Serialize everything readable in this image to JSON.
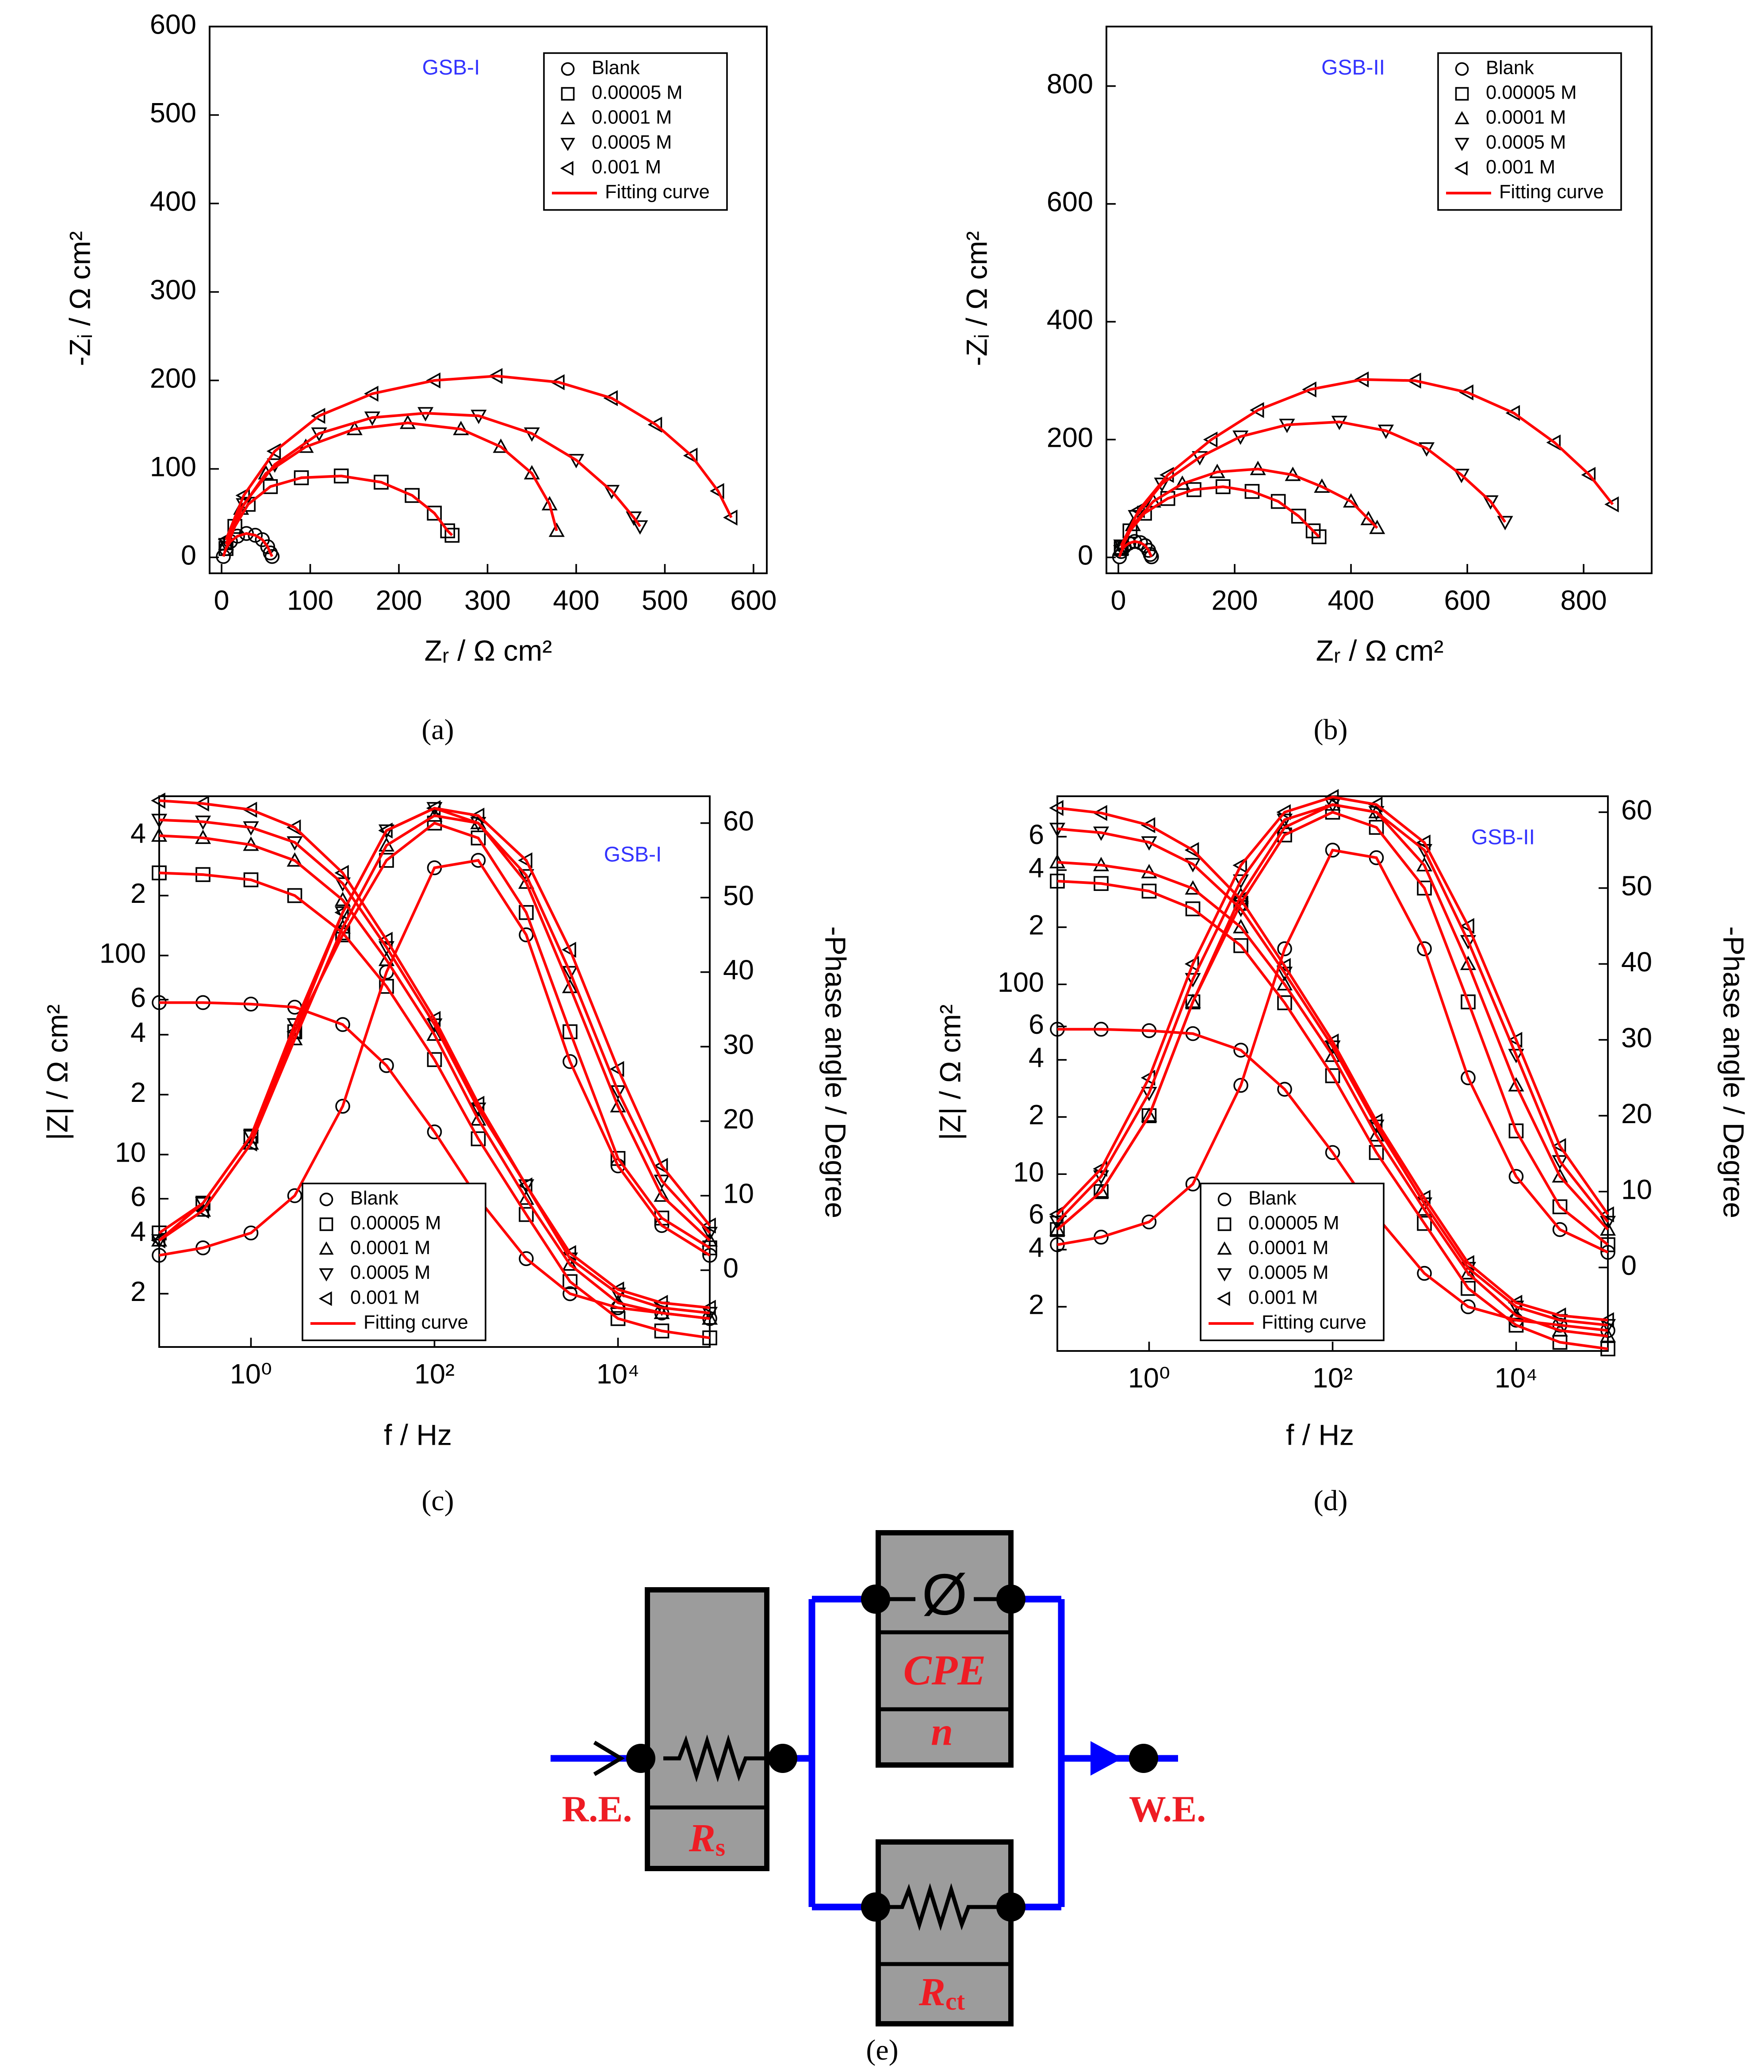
{
  "chart_data": [
    {
      "type": "scatter",
      "panel_label": "(a)",
      "annotation": "GSB-I",
      "annotation_color": "#3333ff",
      "xlabel": "Zᵣ / Ω cm²",
      "ylabel": "-Zᵢ / Ω cm²",
      "xlim": [
        -13.5,
        615
      ],
      "ylim": [
        -18,
        600
      ],
      "xticks": [
        0,
        100,
        200,
        300,
        400,
        500,
        600
      ],
      "yticks": [
        0,
        100,
        200,
        300,
        400,
        500,
        600
      ],
      "legend": "upper right",
      "marker_color": "#000000",
      "fit": {
        "name": "Fitting curve",
        "color": "#ff0000"
      },
      "series": [
        {
          "name": "Blank",
          "marker": "circle",
          "x": [
            2,
            5,
            10,
            18,
            28,
            38,
            46,
            52,
            55,
            57
          ],
          "values": [
            1,
            10,
            18,
            24,
            27,
            25,
            20,
            12,
            5,
            1
          ]
        },
        {
          "name": "0.00005 M",
          "marker": "square",
          "x": [
            5,
            15,
            30,
            55,
            90,
            135,
            180,
            215,
            240,
            255,
            260
          ],
          "values": [
            10,
            35,
            60,
            80,
            90,
            92,
            85,
            70,
            50,
            30,
            25
          ]
        },
        {
          "name": "0.0001 M",
          "marker": "triangle-up",
          "x": [
            5,
            22,
            50,
            95,
            150,
            210,
            270,
            315,
            350,
            370,
            378
          ],
          "values": [
            15,
            55,
            95,
            125,
            145,
            152,
            145,
            125,
            95,
            60,
            30
          ]
        },
        {
          "name": "0.0005 M",
          "marker": "triangle-down",
          "x": [
            5,
            25,
            60,
            110,
            170,
            230,
            290,
            350,
            400,
            440,
            465,
            472
          ],
          "values": [
            15,
            60,
            105,
            140,
            158,
            163,
            160,
            140,
            110,
            75,
            45,
            35
          ]
        },
        {
          "name": "0.001 M",
          "marker": "triangle-left",
          "x": [
            5,
            25,
            60,
            110,
            170,
            240,
            310,
            380,
            440,
            490,
            530,
            560,
            575
          ],
          "values": [
            20,
            70,
            120,
            160,
            185,
            200,
            205,
            198,
            180,
            150,
            115,
            75,
            45
          ]
        }
      ]
    },
    {
      "type": "scatter",
      "panel_label": "(b)",
      "annotation": "GSB-II",
      "annotation_color": "#3333ff",
      "xlabel": "Zᵣ / Ω cm²",
      "ylabel": "-Zᵢ / Ω cm²",
      "xlim": [
        -20.5,
        917
      ],
      "ylim": [
        -27,
        901
      ],
      "xticks": [
        0,
        200,
        400,
        600,
        800
      ],
      "yticks": [
        0,
        200,
        400,
        600,
        800
      ],
      "legend": "upper right",
      "marker_color": "#000000",
      "fit": {
        "name": "Fitting curve",
        "color": "#ff0000"
      },
      "series": [
        {
          "name": "Blank",
          "marker": "circle",
          "x": [
            2,
            5,
            10,
            18,
            28,
            38,
            46,
            52,
            55,
            57
          ],
          "values": [
            1,
            10,
            18,
            24,
            27,
            25,
            20,
            12,
            5,
            1
          ]
        },
        {
          "name": "0.00005 M",
          "marker": "square",
          "x": [
            5,
            20,
            45,
            85,
            130,
            180,
            230,
            275,
            310,
            335,
            345
          ],
          "values": [
            15,
            45,
            75,
            100,
            115,
            120,
            112,
            95,
            70,
            45,
            35
          ]
        },
        {
          "name": "0.0001 M",
          "marker": "triangle-up",
          "x": [
            5,
            25,
            60,
            110,
            170,
            240,
            300,
            350,
            400,
            430,
            445
          ],
          "values": [
            15,
            55,
            95,
            125,
            145,
            150,
            140,
            120,
            95,
            65,
            50
          ]
        },
        {
          "name": "0.0005 M",
          "marker": "triangle-down",
          "x": [
            5,
            30,
            75,
            140,
            210,
            290,
            380,
            460,
            530,
            590,
            640,
            665
          ],
          "values": [
            20,
            70,
            125,
            170,
            205,
            225,
            230,
            215,
            185,
            140,
            95,
            60
          ]
        },
        {
          "name": "0.001 M",
          "marker": "triangle-left",
          "x": [
            5,
            35,
            85,
            160,
            240,
            330,
            420,
            510,
            600,
            680,
            750,
            810,
            850
          ],
          "values": [
            20,
            80,
            140,
            200,
            250,
            285,
            302,
            300,
            280,
            245,
            195,
            140,
            90
          ]
        }
      ]
    },
    {
      "type": "scatter",
      "panel_label": "(c)",
      "annotation": "GSB-I",
      "annotation_color": "#3333ff",
      "xlabel": "f / Hz",
      "ylabel": "|Z| / Ω cm²",
      "y2label": "-Phase angle / Degree",
      "xscale": "log",
      "yscale": "log",
      "xlim": [
        0.1,
        100000
      ],
      "ylim": [
        1.08,
        631
      ],
      "y2lim": [
        -10.3,
        63.6
      ],
      "xticks": [
        {
          "value": 1,
          "label": "10⁰"
        },
        {
          "value": 100,
          "label": "10²"
        },
        {
          "value": 10000,
          "label": "10⁴"
        }
      ],
      "yticks": [
        2,
        4,
        6,
        10,
        {
          "value": 20,
          "label": "2"
        },
        {
          "value": 40,
          "label": "4"
        },
        {
          "value": 60,
          "label": "6"
        },
        100,
        {
          "value": 200,
          "label": "2"
        },
        {
          "value": 400,
          "label": "4"
        }
      ],
      "y2ticks": [
        0,
        10,
        20,
        30,
        40,
        50,
        60
      ],
      "legend": "lower left",
      "marker_color": "#000000",
      "fit": {
        "name": "Fitting curve",
        "color": "#ff0000"
      },
      "x": [
        0.1,
        0.3,
        1,
        3,
        10,
        30,
        100,
        300,
        1000,
        3000,
        10000,
        30000,
        100000
      ],
      "series": [
        {
          "name": "Blank",
          "marker": "circle",
          "values": [
            58,
            58,
            57,
            55,
            45,
            28,
            13,
            6,
            3,
            2,
            1.7,
            1.6,
            1.5
          ],
          "phase": [
            2,
            3,
            5,
            10,
            22,
            40,
            54,
            55,
            45,
            28,
            14,
            6,
            2
          ]
        },
        {
          "name": "0.00005 M",
          "marker": "square",
          "values": [
            260,
            255,
            240,
            200,
            130,
            70,
            30,
            12,
            5,
            2.3,
            1.5,
            1.3,
            1.2
          ],
          "phase": [
            5,
            9,
            18,
            32,
            45,
            55,
            60,
            58,
            48,
            32,
            15,
            7,
            3
          ]
        },
        {
          "name": "0.0001 M",
          "marker": "triangle-up",
          "values": [
            400,
            390,
            360,
            300,
            190,
            95,
            40,
            15,
            6,
            2.8,
            1.8,
            1.6,
            1.5
          ],
          "phase": [
            4,
            8,
            17,
            31,
            46,
            57,
            61,
            60,
            52,
            38,
            22,
            10,
            4
          ]
        },
        {
          "name": "0.0005 M",
          "marker": "triangle-down",
          "values": [
            480,
            470,
            440,
            370,
            230,
            110,
            45,
            17,
            7,
            3,
            2,
            1.7,
            1.6
          ],
          "phase": [
            4,
            9,
            18,
            33,
            48,
            59,
            62,
            60,
            53,
            40,
            24,
            12,
            5
          ]
        },
        {
          "name": "0.001 M",
          "marker": "triangle-left",
          "values": [
            600,
            580,
            540,
            440,
            260,
            120,
            48,
            18,
            7,
            3.2,
            2.1,
            1.8,
            1.7
          ],
          "phase": [
            4,
            8,
            17,
            32,
            48,
            59,
            62,
            61,
            55,
            43,
            27,
            14,
            6
          ]
        }
      ]
    },
    {
      "type": "scatter",
      "panel_label": "(d)",
      "annotation": "GSB-II",
      "annotation_color": "#3333ff",
      "xlabel": "f / Hz",
      "ylabel": "|Z| / Ω cm²",
      "y2label": "-Phase angle / Degree",
      "xscale": "log",
      "yscale": "log",
      "xlim": [
        0.1,
        100000
      ],
      "ylim": [
        1.17,
        980
      ],
      "y2lim": [
        -11,
        62.1
      ],
      "xticks": [
        {
          "value": 1,
          "label": "10⁰"
        },
        {
          "value": 100,
          "label": "10²"
        },
        {
          "value": 10000,
          "label": "10⁴"
        }
      ],
      "yticks": [
        2,
        4,
        6,
        10,
        {
          "value": 20,
          "label": "2"
        },
        {
          "value": 40,
          "label": "4"
        },
        {
          "value": 60,
          "label": "6"
        },
        100,
        {
          "value": 200,
          "label": "2"
        },
        {
          "value": 400,
          "label": "4"
        },
        {
          "value": 600,
          "label": "6"
        }
      ],
      "y2ticks": [
        0,
        10,
        20,
        30,
        40,
        50,
        60
      ],
      "legend": "lower left",
      "marker_color": "#000000",
      "fit": {
        "name": "Fitting curve",
        "color": "#ff0000"
      },
      "x": [
        0.1,
        0.3,
        1,
        3,
        10,
        30,
        100,
        300,
        1000,
        3000,
        10000,
        30000,
        100000
      ],
      "series": [
        {
          "name": "Blank",
          "marker": "circle",
          "values": [
            58,
            58,
            57,
            55,
            45,
            28,
            13,
            6,
            3,
            2,
            1.7,
            1.6,
            1.5
          ],
          "phase": [
            3,
            4,
            6,
            11,
            24,
            42,
            55,
            54,
            42,
            25,
            12,
            5,
            2
          ]
        },
        {
          "name": "0.00005 M",
          "marker": "square",
          "values": [
            350,
            340,
            310,
            250,
            160,
            80,
            33,
            13,
            5.5,
            2.5,
            1.6,
            1.3,
            1.2
          ],
          "phase": [
            5,
            10,
            20,
            35,
            48,
            57,
            60,
            58,
            50,
            35,
            18,
            8,
            3
          ]
        },
        {
          "name": "0.0001 M",
          "marker": "triangle-up",
          "values": [
            440,
            425,
            390,
            320,
            200,
            100,
            42,
            16,
            6.5,
            3,
            1.8,
            1.5,
            1.4
          ],
          "phase": [
            5,
            10,
            20,
            35,
            49,
            58,
            61,
            60,
            53,
            40,
            24,
            12,
            5
          ]
        },
        {
          "name": "0.0005 M",
          "marker": "triangle-down",
          "values": [
            660,
            630,
            560,
            430,
            250,
            115,
            47,
            18,
            7,
            3.2,
            2,
            1.7,
            1.6
          ],
          "phase": [
            6,
            12,
            23,
            38,
            51,
            59,
            61,
            60,
            55,
            43,
            28,
            14,
            6
          ]
        },
        {
          "name": "0.001 M",
          "marker": "triangle-left",
          "values": [
            850,
            800,
            690,
            510,
            280,
            125,
            50,
            19,
            7.5,
            3.4,
            2.1,
            1.8,
            1.7
          ],
          "phase": [
            7,
            13,
            25,
            40,
            53,
            60,
            62,
            61,
            56,
            45,
            30,
            16,
            7
          ]
        }
      ]
    }
  ],
  "diagram": {
    "label": "(e)",
    "input": "R.E.",
    "output": "W.E.",
    "elements": [
      {
        "name": "R",
        "sub": "s"
      },
      {
        "symbol": "Ø",
        "name": "CPE",
        "param": "n"
      },
      {
        "name": "R",
        "sub": "ct"
      }
    ]
  }
}
